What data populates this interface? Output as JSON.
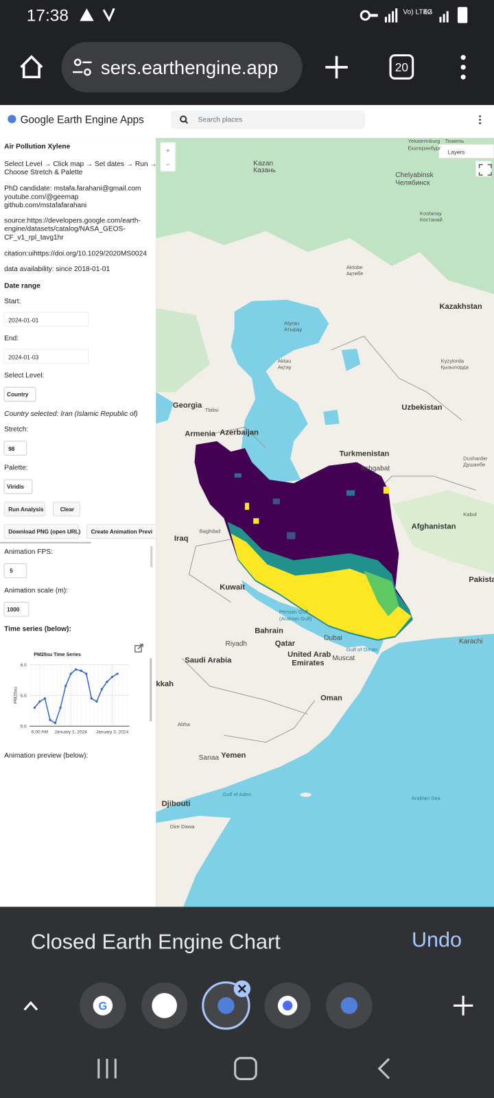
{
  "status_bar": {
    "time": "17:38",
    "network": "Vo) LTE2",
    "network_type": "4G"
  },
  "browser": {
    "url": "sers.earthengine.app",
    "tab_count": "20"
  },
  "app_header": {
    "title": "Google Earth Engine Apps",
    "search_placeholder": "Search places"
  },
  "panel": {
    "title": "Air Pollution Xylene",
    "instructions": [
      "Select Level → Click map → Set dates → Run →",
      "Choose Stretch & Palette"
    ],
    "contact": [
      "PhD candidate: mstafa.farahani@gmail.com",
      "youtube.com/@geemap",
      "github.com/mstafafarahani"
    ],
    "source": [
      "source:https://developers.google.com/earth-",
      "engine/datasets/catalog/NASA_GEOS-",
      "CF_v1_rpl_tavg1hr"
    ],
    "citation": "citation:uihttps://doi.org/10.1029/2020MS0024",
    "availability": "data availability: since 2018-01-01",
    "date_range_heading": "Date range",
    "start_label": "Start:",
    "start_value": "2024-01-01",
    "end_label": "End:",
    "end_value": "2024-01-03",
    "level_label": "Select Level:",
    "level_value": "Country",
    "country_selected": "Country selected: Iran (Islamic Republic of)",
    "stretch_label": "Stretch:",
    "stretch_value": "98",
    "palette_label": "Palette:",
    "palette_value": "Viridis",
    "buttons": [
      "Run Analysis",
      "Clear",
      "Download PNG (open URL)",
      "Create Animation Previ"
    ],
    "fps_label": "Animation FPS:",
    "fps_value": "5",
    "scale_label": "Animation scale (m):",
    "scale_value": "1000",
    "time_series_heading": "Time series (below):",
    "animation_heading": "Animation preview (below):"
  },
  "chart_data": {
    "type": "line",
    "title": "PM25su Time Series",
    "y_label": "PM25su",
    "x": [
      "2024-01-01T03:00",
      "2024-01-01T06:00",
      "2024-01-01T09:00",
      "2024-01-01T12:00",
      "2024-01-01T15:00",
      "2024-01-01T18:00",
      "2024-01-01T21:00",
      "2024-01-02T00:00",
      "2024-01-02T03:00",
      "2024-01-02T06:00",
      "2024-01-02T09:00",
      "2024-01-02T12:00",
      "2024-01-02T15:00",
      "2024-01-02T18:00",
      "2024-01-02T21:00",
      "2024-01-03T00:00",
      "2024-01-03T03:00"
    ],
    "values": [
      5.3,
      5.4,
      5.45,
      5.1,
      5.05,
      5.3,
      5.65,
      5.85,
      5.92,
      5.9,
      5.85,
      5.45,
      5.4,
      5.6,
      5.72,
      5.8,
      5.85
    ],
    "color": "#3366cc",
    "xlim": [
      "2024-01-01T00:00",
      "2024-01-03T10:00"
    ],
    "ylim": [
      5,
      6
    ],
    "xticks": [
      {
        "value": "2024-01-01T06:00",
        "label": "6:00 AM"
      },
      {
        "value": "2024-01-02T00:00",
        "label": "January 2, 2024"
      },
      {
        "value": "2024-01-03T00:00",
        "label": "January 3, 2024"
      }
    ],
    "yticks": [
      {
        "value": 5,
        "label": "5.0"
      },
      {
        "value": 5.5,
        "label": "5.5"
      },
      {
        "value": 6,
        "label": "6.0"
      }
    ],
    "grid": true
  },
  "map": {
    "zoom_in": "+",
    "zoom_out": "−",
    "layers_button": "Layers",
    "labels": [
      "Yekaterinburg",
      "Екатеринбург",
      "Тюмень",
      "Kazan",
      "Казань",
      "Chelyabinsk",
      "Челябинск",
      "Kostanay",
      "Костанай",
      "Aktobe",
      "Ақтөбе",
      "Kazakhstan",
      "Atyrau",
      "Атырау",
      "Kyzylorda",
      "Қызылорда",
      "Aktau",
      "Ақтау",
      "Georgia",
      "Tbilisi",
      "Armenia",
      "Azerbaijan",
      "Uzbekistan",
      "Turkmenistan",
      "Ashgabat",
      "Dushanbe",
      "Душанбе",
      "Afghanistan",
      "Kabul",
      "Iraq",
      "Baghdad",
      "Kuwait",
      "Pakista",
      "Bahrain",
      "Persian Gulf",
      "(Arabian Gulf)",
      "Qatar",
      "Riyadh",
      "Saudi Arabia",
      "United Arab",
      "Emirates",
      "Dubai",
      "Muscat",
      "Gulf of Oman",
      "Karachi",
      "Oman",
      "Yemen",
      "Sanaa",
      "Abha",
      "Gulf of Aden",
      "Djibouti",
      "Arabian Sea",
      "Dire Dawa",
      "kkah"
    ]
  },
  "snackbar": {
    "message": "Closed Earth Engine Chart",
    "action": "Undo"
  }
}
